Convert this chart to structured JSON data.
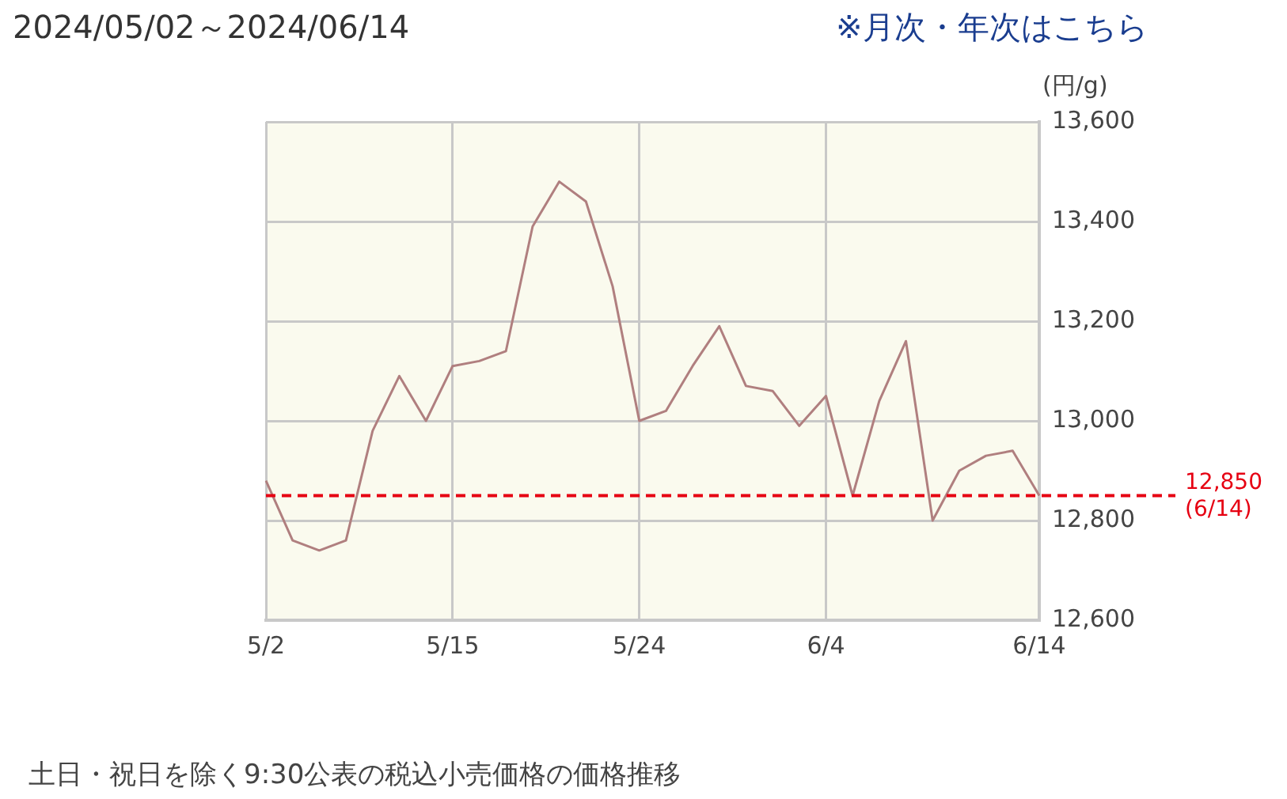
{
  "chart_data": {
    "type": "line",
    "title": "2024/05/02～2024/06/14",
    "ylabel": "(円/g)",
    "annotations": [
      "※月次・年次はこちら",
      "土日・祝日を除く9:30公表の税込小売価格の価格推移"
    ],
    "categories": [
      "5/2",
      null,
      null,
      null,
      null,
      null,
      null,
      "5/15",
      null,
      null,
      null,
      null,
      null,
      null,
      "5/24",
      null,
      null,
      null,
      null,
      null,
      null,
      "6/4",
      null,
      null,
      null,
      null,
      null,
      null,
      null,
      "6/14"
    ],
    "series": [
      {
        "color": "#b07f7f",
        "values": [
          12880,
          12760,
          12740,
          12760,
          12980,
          13090,
          13000,
          13110,
          13120,
          13140,
          13390,
          13480,
          13440,
          13270,
          13000,
          13020,
          13110,
          13190,
          13070,
          13060,
          12990,
          13050,
          12850,
          13040,
          13160,
          12800,
          12900,
          12930,
          12940,
          12850
        ]
      }
    ],
    "ylim": [
      12600,
      13600
    ],
    "yticks": [
      {
        "value": 12600,
        "label": "12,600"
      },
      {
        "value": 12800,
        "label": "12,800"
      },
      {
        "value": 13000,
        "label": "13,000"
      },
      {
        "value": 13200,
        "label": "13,200"
      },
      {
        "value": 13400,
        "label": "13,400"
      },
      {
        "value": 13600,
        "label": "13,600"
      }
    ],
    "ref_lines": [
      {
        "axis": "y",
        "value": 12850,
        "label": "12,850\n(6/14)",
        "color": "#e60012",
        "line_style": "dashed"
      }
    ],
    "grid": true,
    "legend": false,
    "marker": "none",
    "line_style": "solid"
  }
}
